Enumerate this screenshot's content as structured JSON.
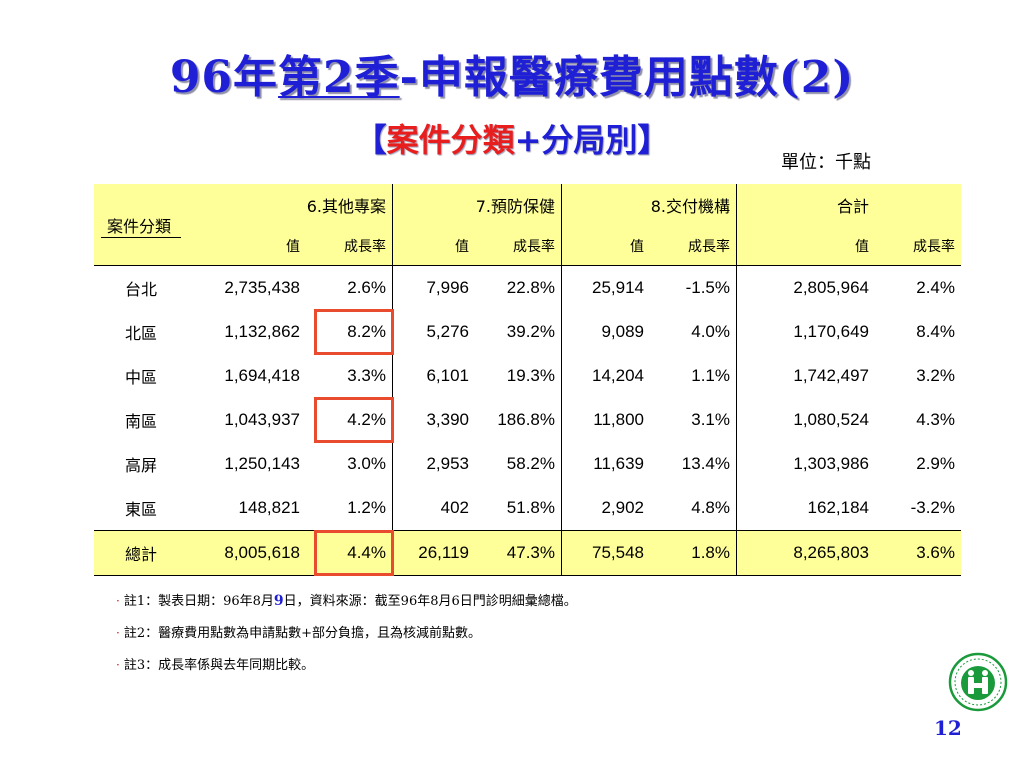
{
  "title": {
    "part1": "96年",
    "part2": "第2季",
    "part3": "-申報醫療費用點數(2)"
  },
  "subtitle": {
    "open": "【",
    "red": "案件分類",
    "rest": "+分局別",
    "close": "】"
  },
  "unit": "單位：千點",
  "table": {
    "row_header_label": "案件分類",
    "groups": [
      "6.其他專案",
      "7.預防保健",
      "8.交付機構",
      "合計"
    ],
    "sub_value": "值",
    "sub_growth": "成長率",
    "rows": [
      {
        "name": "台北",
        "cells": [
          "2,735,438",
          "2.6%",
          "7,996",
          "22.8%",
          "25,914",
          "-1.5%",
          "2,805,964",
          "2.4%"
        ]
      },
      {
        "name": "北區",
        "cells": [
          "1,132,862",
          "8.2%",
          "5,276",
          "39.2%",
          "9,089",
          "4.0%",
          "1,170,649",
          "8.4%"
        ]
      },
      {
        "name": "中區",
        "cells": [
          "1,694,418",
          "3.3%",
          "6,101",
          "19.3%",
          "14,204",
          "1.1%",
          "1,742,497",
          "3.2%"
        ]
      },
      {
        "name": "南區",
        "cells": [
          "1,043,937",
          "4.2%",
          "3,390",
          "186.8%",
          "11,800",
          "3.1%",
          "1,080,524",
          "4.3%"
        ]
      },
      {
        "name": "高屏",
        "cells": [
          "1,250,143",
          "3.0%",
          "2,953",
          "58.2%",
          "11,639",
          "13.4%",
          "1,303,986",
          "2.9%"
        ]
      },
      {
        "name": "東區",
        "cells": [
          "148,821",
          "1.2%",
          "402",
          "51.8%",
          "2,902",
          "4.8%",
          "162,184",
          "-3.2%"
        ]
      }
    ],
    "total": {
      "name": "總計",
      "cells": [
        "8,005,618",
        "4.4%",
        "26,119",
        "47.3%",
        "75,548",
        "1.8%",
        "8,265,803",
        "3.6%"
      ]
    }
  },
  "notes": {
    "bullet": "·",
    "n1_a": "註1：製表日期：96年8月",
    "n1_b": "9",
    "n1_c": "日，資料來源：截至96年8月6日門診明細彙總檔。",
    "n2": "註2：醫療費用點數為申請點數+部分負擔，且為核減前點數。",
    "n3": "註3：成長率係與去年同期比較。"
  },
  "page_number": "12",
  "colors": {
    "title_blue": "#1f1fd6",
    "highlight_red": "#e81e1e",
    "header_yellow": "#ffff99",
    "box_orange": "#e84b2e"
  }
}
